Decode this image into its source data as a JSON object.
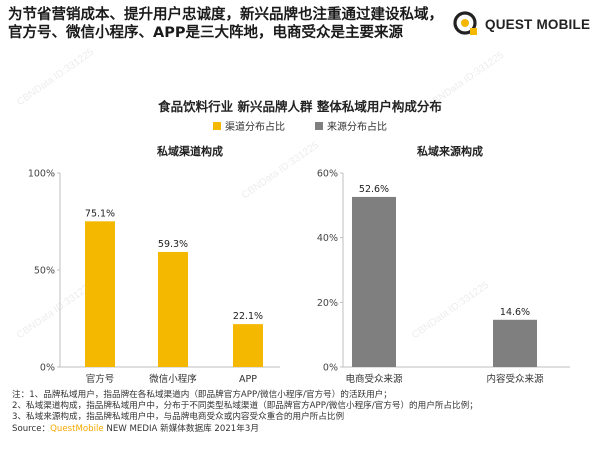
{
  "headline": "为节省营销成本、提升用户忠诚度，新兴品牌也注重通过建设私域，官方号、微信小程序、APP是三大阵地，电商受众是主要来源",
  "logo": {
    "text": "QUEST MOBILE"
  },
  "watermark": "CBNData ID:331225",
  "subtitle": "食品饮料行业 新兴品牌人群 整体私域用户构成分布",
  "legend": [
    {
      "label": "渠道分布占比",
      "color": "#f5b800"
    },
    {
      "label": "来源分布占比",
      "color": "#7f7f7f"
    }
  ],
  "chart_data": [
    {
      "type": "bar",
      "title": "私域渠道构成",
      "categories": [
        "官方号",
        "微信小程序",
        "APP"
      ],
      "values": [
        75.1,
        59.3,
        22.1
      ],
      "value_labels": [
        "75.1%",
        "59.3%",
        "22.1%"
      ],
      "series_name": "渠道分布占比",
      "ylim": [
        0,
        100
      ],
      "yticks": [
        0,
        50,
        100
      ],
      "ytick_labels": [
        "0%",
        "50%",
        "100%"
      ],
      "color": "#f5b800",
      "grid": false
    },
    {
      "type": "bar",
      "title": "私域来源构成",
      "categories": [
        "电商受众来源",
        "内容受众来源"
      ],
      "values": [
        52.6,
        14.6
      ],
      "value_labels": [
        "52.6%",
        "14.6%"
      ],
      "series_name": "来源分布占比",
      "ylim": [
        0,
        60
      ],
      "yticks": [
        0,
        20,
        40,
        60
      ],
      "ytick_labels": [
        "0%",
        "20%",
        "40%",
        "60%"
      ],
      "color": "#7f7f7f",
      "grid": false
    }
  ],
  "notes": {
    "line1": "注：1、品牌私域用户，指品牌在各私域渠道内（即品牌官方APP/微信小程序/官方号）的活跃用户；",
    "line2": "2、私域渠道构成，指品牌私域用户中，分布于不同类型私域渠道（即品牌官方APP/微信小程序/官方号）的用户所占比例；",
    "line3": "3、私域来源构成，指品牌私域用户中，与品牌电商受众或内容受众重合的用户所占比例",
    "source_prefix": "Source：",
    "source_brand": "QuestMobile",
    "source_rest": " NEW MEDIA 新媒体数据库 2021年3月"
  }
}
